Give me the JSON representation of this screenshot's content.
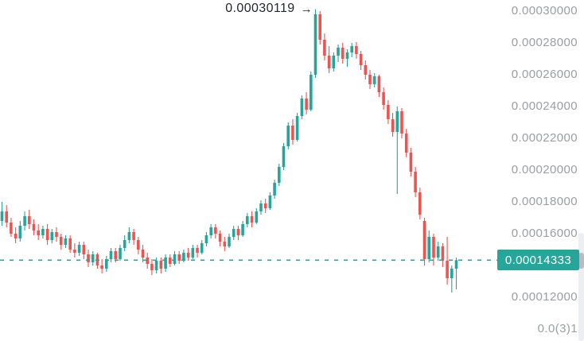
{
  "chart_data": {
    "type": "candlestick",
    "title": "",
    "xlabel": "",
    "ylabel": "",
    "grid": false,
    "legend": "none",
    "colors": {
      "up": "#26a69a",
      "down": "#ef5350",
      "axis_text": "#9b9ea6",
      "annotation_text": "#23272e",
      "price_line": "#26a69a",
      "price_tag_bg": "#26a69a",
      "price_tag_text": "#ffffff",
      "background": "#ffffff"
    },
    "peak_label": "0.00030119",
    "peak_arrow": "→",
    "peak_value": 0.00030119,
    "current_price_label": "0.00014333",
    "current_price_value": 0.00014333,
    "price_line_style": "dashed",
    "y_axis_side": "right",
    "ylim": [
      0.0001,
      0.000305
    ],
    "y_axis_ticks": [
      {
        "label": "0.00030000",
        "value": 0.0003
      },
      {
        "label": "0.00028000",
        "value": 0.00028
      },
      {
        "label": "0.00026000",
        "value": 0.00026
      },
      {
        "label": "0.00024000",
        "value": 0.00024
      },
      {
        "label": "0.00022000",
        "value": 0.00022
      },
      {
        "label": "0.00020000",
        "value": 0.0002
      },
      {
        "label": "0.00018000",
        "value": 0.00018
      },
      {
        "label": "0.00016000",
        "value": 0.00016
      },
      {
        "label": "0.00012000",
        "value": 0.00012
      },
      {
        "label": "0.0(3)1",
        "value": 0.0001
      }
    ],
    "candles_ohlc": [
      [
        0.000168,
        0.00018,
        0.000165,
        0.000174
      ],
      [
        0.000174,
        0.000178,
        0.000164,
        0.000167
      ],
      [
        0.000167,
        0.00017,
        0.000158,
        0.00016
      ],
      [
        0.00016,
        0.000164,
        0.000154,
        0.000157
      ],
      [
        0.000157,
        0.000168,
        0.000155,
        0.000165
      ],
      [
        0.000165,
        0.000174,
        0.000162,
        0.000171
      ],
      [
        0.000171,
        0.000175,
        0.000163,
        0.000166
      ],
      [
        0.000166,
        0.000169,
        0.000159,
        0.000162
      ],
      [
        0.000162,
        0.000166,
        0.000156,
        0.000159
      ],
      [
        0.000159,
        0.000165,
        0.000157,
        0.000163
      ],
      [
        0.000163,
        0.000166,
        0.000153,
        0.000156
      ],
      [
        0.000156,
        0.000163,
        0.000154,
        0.000161
      ],
      [
        0.000161,
        0.000164,
        0.000155,
        0.000158
      ],
      [
        0.000158,
        0.00016,
        0.00015,
        0.000153
      ],
      [
        0.000153,
        0.000159,
        0.000151,
        0.000157
      ],
      [
        0.000157,
        0.000159,
        0.000148,
        0.00015
      ],
      [
        0.00015,
        0.000154,
        0.000145,
        0.000148
      ],
      [
        0.000148,
        0.000155,
        0.000146,
        0.000153
      ],
      [
        0.000153,
        0.000155,
        0.000144,
        0.000147
      ],
      [
        0.000147,
        0.00015,
        0.000139,
        0.000142
      ],
      [
        0.000142,
        0.000149,
        0.00014,
        0.000147
      ],
      [
        0.000147,
        0.000148,
        0.000138,
        0.00014
      ],
      [
        0.00014,
        0.000144,
        0.000135,
        0.000138
      ],
      [
        0.000138,
        0.000146,
        0.000136,
        0.000144
      ],
      [
        0.000144,
        0.000151,
        0.000142,
        0.000149
      ],
      [
        0.000149,
        0.000151,
        0.000142,
        0.000144
      ],
      [
        0.000144,
        0.000153,
        0.000143,
        0.000151
      ],
      [
        0.000151,
        0.000159,
        0.000149,
        0.000156
      ],
      [
        0.000156,
        0.000164,
        0.000154,
        0.000161
      ],
      [
        0.000161,
        0.000163,
        0.000153,
        0.000156
      ],
      [
        0.000156,
        0.000158,
        0.000147,
        0.00015
      ],
      [
        0.00015,
        0.000153,
        0.000142,
        0.000145
      ],
      [
        0.000145,
        0.000148,
        0.000138,
        0.000141
      ],
      [
        0.000141,
        0.000144,
        0.000134,
        0.000137
      ],
      [
        0.000137,
        0.000145,
        0.000135,
        0.000143
      ],
      [
        0.000143,
        0.000145,
        0.000135,
        0.000138
      ],
      [
        0.000138,
        0.000147,
        0.000136,
        0.000145
      ],
      [
        0.000145,
        0.000147,
        0.000139,
        0.000141
      ],
      [
        0.000141,
        0.000149,
        0.00014,
        0.000147
      ],
      [
        0.000147,
        0.000149,
        0.000141,
        0.000143
      ],
      [
        0.000143,
        0.00015,
        0.000142,
        0.000148
      ],
      [
        0.000148,
        0.000151,
        0.000143,
        0.000145
      ],
      [
        0.000145,
        0.000153,
        0.000144,
        0.000151
      ],
      [
        0.000151,
        0.000153,
        0.000145,
        0.000148
      ],
      [
        0.000148,
        0.000156,
        0.000147,
        0.000154
      ],
      [
        0.000154,
        0.000161,
        0.000152,
        0.000159
      ],
      [
        0.000159,
        0.000166,
        0.000157,
        0.000164
      ],
      [
        0.000164,
        0.000166,
        0.000157,
        0.00016
      ],
      [
        0.00016,
        0.000162,
        0.000152,
        0.000155
      ],
      [
        0.000155,
        0.000158,
        0.000149,
        0.000152
      ],
      [
        0.000152,
        0.00016,
        0.000151,
        0.000158
      ],
      [
        0.000158,
        0.000165,
        0.000156,
        0.000163
      ],
      [
        0.000163,
        0.000165,
        0.000156,
        0.000159
      ],
      [
        0.000159,
        0.000168,
        0.000158,
        0.000166
      ],
      [
        0.000166,
        0.000173,
        0.000164,
        0.000171
      ],
      [
        0.000171,
        0.000174,
        0.000164,
        0.000167
      ],
      [
        0.000167,
        0.000176,
        0.000166,
        0.000174
      ],
      [
        0.000174,
        0.000181,
        0.000172,
        0.000179
      ],
      [
        0.000179,
        0.000182,
        0.000173,
        0.000176
      ],
      [
        0.000176,
        0.000186,
        0.000175,
        0.000184
      ],
      [
        0.000184,
        0.000194,
        0.000182,
        0.000192
      ],
      [
        0.000192,
        0.000204,
        0.00019,
        0.000202
      ],
      [
        0.000202,
        0.000217,
        0.0002,
        0.000215
      ],
      [
        0.000215,
        0.00023,
        0.000213,
        0.000228
      ],
      [
        0.000228,
        0.000232,
        0.000216,
        0.000219
      ],
      [
        0.000219,
        0.000236,
        0.000218,
        0.000234
      ],
      [
        0.000234,
        0.000247,
        0.000232,
        0.000245
      ],
      [
        0.000245,
        0.000249,
        0.000235,
        0.000238
      ],
      [
        0.000238,
        0.000262,
        0.000237,
        0.00026
      ],
      [
        0.00026,
        0.00030119,
        0.000258,
        0.000298
      ],
      [
        0.000298,
        0.0003,
        0.000279,
        0.000282
      ],
      [
        0.000282,
        0.000286,
        0.000269,
        0.000272
      ],
      [
        0.000272,
        0.000278,
        0.000261,
        0.000264
      ],
      [
        0.000264,
        0.000274,
        0.000262,
        0.000272
      ],
      [
        0.000272,
        0.000279,
        0.000268,
        0.000277
      ],
      [
        0.000277,
        0.00028,
        0.000267,
        0.00027
      ],
      [
        0.00027,
        0.000276,
        0.000265,
        0.000274
      ],
      [
        0.000274,
        0.00028,
        0.000271,
        0.000278
      ],
      [
        0.000278,
        0.0002805,
        0.00027,
        0.000273
      ],
      [
        0.000273,
        0.000275,
        0.000263,
        0.000266
      ],
      [
        0.000266,
        0.000269,
        0.000257,
        0.00026
      ],
      [
        0.00026,
        0.000263,
        0.000251,
        0.000254
      ],
      [
        0.000254,
        0.000261,
        0.000252,
        0.000259
      ],
      [
        0.000259,
        0.00026,
        0.000246,
        0.000249
      ],
      [
        0.000249,
        0.000252,
        0.000238,
        0.000241
      ],
      [
        0.000241,
        0.000244,
        0.000229,
        0.000232
      ],
      [
        0.000232,
        0.000236,
        0.000221,
        0.000224
      ],
      [
        0.000224,
        0.00024,
        0.000185,
        0.000237
      ],
      [
        0.000237,
        0.000239,
        0.00022,
        0.000223
      ],
      [
        0.000223,
        0.000226,
        0.000208,
        0.000211
      ],
      [
        0.000211,
        0.000214,
        0.000196,
        0.000199
      ],
      [
        0.000199,
        0.000202,
        0.000183,
        0.000186
      ],
      [
        0.000186,
        0.000189,
        0.000169,
        0.000172
      ],
      [
        0.000168,
        0.00017,
        0.00014,
        0.000144
      ],
      [
        0.000144,
        0.000162,
        0.000142,
        0.000158
      ],
      [
        0.000158,
        0.00016,
        0.00014,
        0.000145
      ],
      [
        0.000145,
        0.000155,
        0.000143,
        0.000152
      ],
      [
        0.000152,
        0.000154,
        0.000139,
        0.000143
      ],
      [
        0.000143,
        0.000158,
        0.000128,
        0.000132
      ],
      [
        0.000132,
        0.00014,
        0.000123,
        0.000138
      ],
      [
        0.000138,
        0.000145,
        0.000125,
        0.00014333
      ]
    ]
  }
}
